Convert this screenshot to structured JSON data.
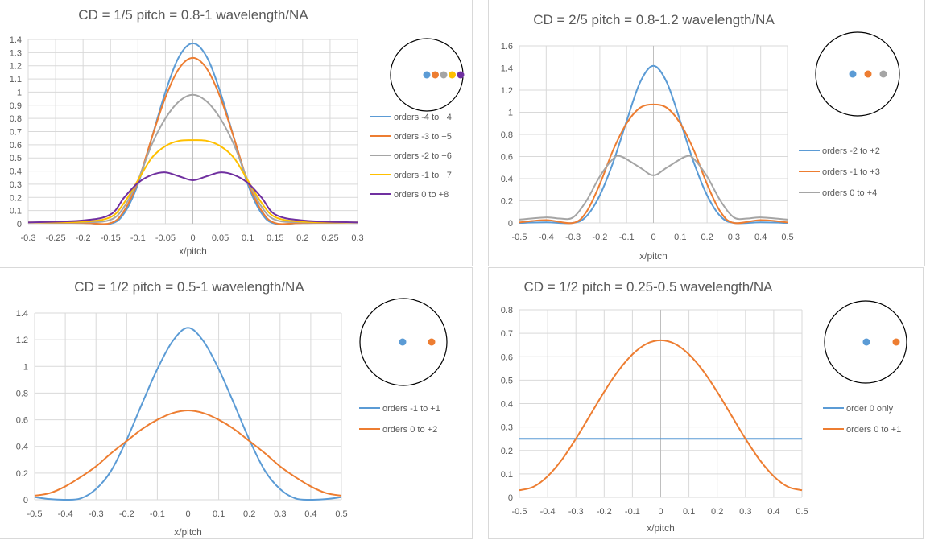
{
  "chart_data": [
    {
      "type": "line",
      "title": "CD = 1/5 pitch = 0.8-1 wavelength/NA",
      "xlabel": "x/pitch",
      "ylabel": "",
      "xlim": [
        -0.3,
        0.3
      ],
      "ylim": [
        0,
        1.4
      ],
      "xticks": [
        "-0.3",
        "-0.25",
        "-0.2",
        "-0.15",
        "-0.1",
        "-0.05",
        "0",
        "0.05",
        "0.1",
        "0.15",
        "0.2",
        "0.25",
        "0.3"
      ],
      "yticks": [
        "0",
        "0.1",
        "0.2",
        "0.3",
        "0.4",
        "0.5",
        "0.6",
        "0.7",
        "0.8",
        "0.9",
        "1",
        "1.1",
        "1.2",
        "1.3",
        "1.4"
      ],
      "grid": true,
      "legend_position": "right",
      "pupil_dots": [
        "#5b9bd5",
        "#ed7d31",
        "#a5a5a5",
        "#ffc000",
        "#7030a0"
      ],
      "series": [
        {
          "name": "orders -4 to +4",
          "color": "#5b9bd5",
          "x": [
            -0.3,
            -0.2,
            -0.15,
            -0.125,
            -0.1,
            -0.075,
            -0.05,
            -0.025,
            0,
            0.025,
            0.05,
            0.075,
            0.1,
            0.125,
            0.15,
            0.2,
            0.3
          ],
          "y": [
            0.01,
            0.005,
            0,
            0.08,
            0.3,
            0.65,
            1.0,
            1.27,
            1.37,
            1.27,
            1.0,
            0.65,
            0.3,
            0.08,
            0,
            0.005,
            0.01
          ]
        },
        {
          "name": "orders -3 to +5",
          "color": "#ed7d31",
          "x": [
            -0.3,
            -0.2,
            -0.15,
            -0.125,
            -0.1,
            -0.075,
            -0.05,
            -0.025,
            0,
            0.025,
            0.05,
            0.075,
            0.1,
            0.125,
            0.15,
            0.2,
            0.3
          ],
          "y": [
            0.01,
            0.005,
            0.005,
            0.1,
            0.32,
            0.65,
            0.96,
            1.18,
            1.26,
            1.18,
            0.96,
            0.65,
            0.32,
            0.1,
            0.005,
            0.005,
            0.01
          ]
        },
        {
          "name": "orders -2 to +6",
          "color": "#a5a5a5",
          "x": [
            -0.3,
            -0.2,
            -0.15,
            -0.125,
            -0.1,
            -0.075,
            -0.05,
            -0.025,
            0,
            0.025,
            0.05,
            0.075,
            0.1,
            0.125,
            0.15,
            0.2,
            0.3
          ],
          "y": [
            0.01,
            0.01,
            0.03,
            0.13,
            0.33,
            0.6,
            0.8,
            0.93,
            0.98,
            0.93,
            0.8,
            0.6,
            0.33,
            0.13,
            0.03,
            0.01,
            0.01
          ]
        },
        {
          "name": "orders -1 to +7",
          "color": "#ffc000",
          "x": [
            -0.3,
            -0.2,
            -0.15,
            -0.125,
            -0.1,
            -0.075,
            -0.05,
            -0.025,
            0,
            0.025,
            0.05,
            0.075,
            0.1,
            0.125,
            0.15,
            0.2,
            0.3
          ],
          "y": [
            0.01,
            0.015,
            0.05,
            0.16,
            0.33,
            0.5,
            0.59,
            0.63,
            0.635,
            0.63,
            0.59,
            0.5,
            0.33,
            0.16,
            0.05,
            0.015,
            0.01
          ]
        },
        {
          "name": "orders 0 to +8",
          "color": "#7030a0",
          "x": [
            -0.3,
            -0.2,
            -0.15,
            -0.125,
            -0.1,
            -0.075,
            -0.05,
            -0.025,
            0,
            0.025,
            0.05,
            0.075,
            0.1,
            0.125,
            0.15,
            0.2,
            0.3
          ],
          "y": [
            0.01,
            0.025,
            0.07,
            0.2,
            0.31,
            0.37,
            0.39,
            0.36,
            0.33,
            0.36,
            0.39,
            0.37,
            0.31,
            0.2,
            0.07,
            0.025,
            0.01
          ]
        }
      ]
    },
    {
      "type": "line",
      "title": "CD = 2/5 pitch = 0.8-1.2 wavelength/NA",
      "xlabel": "x/pitch",
      "ylabel": "",
      "xlim": [
        -0.5,
        0.5
      ],
      "ylim": [
        0,
        1.6
      ],
      "xticks": [
        "-0.5",
        "-0.4",
        "-0.3",
        "-0.2",
        "-0.1",
        "0",
        "0.1",
        "0.2",
        "0.3",
        "0.4",
        "0.5"
      ],
      "yticks": [
        "0",
        "0.2",
        "0.4",
        "0.6",
        "0.8",
        "1",
        "1.2",
        "1.4",
        "1.6"
      ],
      "grid": true,
      "legend_position": "right",
      "pupil_dots": [
        "#5b9bd5",
        "#ed7d31",
        "#a5a5a5"
      ],
      "series": [
        {
          "name": "orders -2 to +2",
          "color": "#5b9bd5",
          "x": [
            -0.5,
            -0.4,
            -0.3,
            -0.25,
            -0.2,
            -0.15,
            -0.1,
            -0.05,
            0,
            0.05,
            0.1,
            0.15,
            0.2,
            0.25,
            0.3,
            0.4,
            0.5
          ],
          "y": [
            0,
            0.005,
            0,
            0.06,
            0.25,
            0.55,
            0.92,
            1.27,
            1.42,
            1.27,
            0.92,
            0.55,
            0.25,
            0.06,
            0,
            0.005,
            0
          ]
        },
        {
          "name": "orders -1 to +3",
          "color": "#ed7d31",
          "x": [
            -0.5,
            -0.4,
            -0.3,
            -0.25,
            -0.2,
            -0.15,
            -0.1,
            -0.05,
            0,
            0.05,
            0.1,
            0.15,
            0.2,
            0.25,
            0.3,
            0.4,
            0.5
          ],
          "y": [
            0.005,
            0.025,
            0,
            0.1,
            0.35,
            0.66,
            0.9,
            1.04,
            1.07,
            1.04,
            0.9,
            0.66,
            0.35,
            0.1,
            0,
            0.025,
            0.005
          ]
        },
        {
          "name": "orders 0 to +4",
          "color": "#a5a5a5",
          "x": [
            -0.5,
            -0.4,
            -0.35,
            -0.3,
            -0.25,
            -0.2,
            -0.15,
            -0.12,
            -0.05,
            0,
            0.05,
            0.12,
            0.15,
            0.2,
            0.25,
            0.3,
            0.35,
            0.4,
            0.5
          ],
          "y": [
            0.03,
            0.05,
            0.04,
            0.05,
            0.2,
            0.42,
            0.58,
            0.6,
            0.5,
            0.43,
            0.5,
            0.6,
            0.58,
            0.42,
            0.2,
            0.05,
            0.04,
            0.05,
            0.03
          ]
        }
      ]
    },
    {
      "type": "line",
      "title": "CD = 1/2 pitch = 0.5-1 wavelength/NA",
      "xlabel": "x/pitch",
      "ylabel": "",
      "xlim": [
        -0.5,
        0.5
      ],
      "ylim": [
        0,
        1.4
      ],
      "xticks": [
        "-0.5",
        "-0.4",
        "-0.3",
        "-0.2",
        "-0.1",
        "0",
        "0.1",
        "0.2",
        "0.3",
        "0.4",
        "0.5"
      ],
      "yticks": [
        "0",
        "0.2",
        "0.4",
        "0.6",
        "0.8",
        "1",
        "1.2",
        "1.4"
      ],
      "grid": true,
      "legend_position": "right",
      "pupil_dots": [
        "#5b9bd5",
        "#ed7d31"
      ],
      "series": [
        {
          "name": "orders -1 to +1",
          "color": "#5b9bd5",
          "x": [
            -0.5,
            -0.45,
            -0.4,
            -0.35,
            -0.3,
            -0.25,
            -0.2,
            -0.15,
            -0.1,
            -0.05,
            0,
            0.05,
            0.1,
            0.15,
            0.2,
            0.25,
            0.3,
            0.35,
            0.4,
            0.45,
            0.5
          ],
          "y": [
            0.02,
            0.005,
            0,
            0.01,
            0.08,
            0.22,
            0.45,
            0.72,
            0.98,
            1.19,
            1.29,
            1.19,
            0.98,
            0.72,
            0.45,
            0.22,
            0.08,
            0.01,
            0,
            0.005,
            0.02
          ]
        },
        {
          "name": "orders 0 to +2",
          "color": "#ed7d31",
          "x": [
            -0.5,
            -0.45,
            -0.4,
            -0.35,
            -0.3,
            -0.25,
            -0.2,
            -0.15,
            -0.1,
            -0.05,
            0,
            0.05,
            0.1,
            0.15,
            0.2,
            0.25,
            0.3,
            0.35,
            0.4,
            0.45,
            0.5
          ],
          "y": [
            0.03,
            0.05,
            0.1,
            0.17,
            0.25,
            0.35,
            0.44,
            0.53,
            0.6,
            0.65,
            0.67,
            0.65,
            0.6,
            0.53,
            0.44,
            0.35,
            0.25,
            0.17,
            0.1,
            0.05,
            0.03
          ]
        }
      ]
    },
    {
      "type": "line",
      "title": "CD = 1/2 pitch = 0.25-0.5 wavelength/NA",
      "xlabel": "x/pitch",
      "ylabel": "",
      "xlim": [
        -0.5,
        0.5
      ],
      "ylim": [
        0,
        0.8
      ],
      "xticks": [
        "-0.5",
        "-0.4",
        "-0.3",
        "-0.2",
        "-0.1",
        "0",
        "0.1",
        "0.2",
        "0.3",
        "0.4",
        "0.5"
      ],
      "yticks": [
        "0",
        "0.1",
        "0.2",
        "0.3",
        "0.4",
        "0.5",
        "0.6",
        "0.7",
        "0.8"
      ],
      "grid": true,
      "legend_position": "right",
      "pupil_dots": [
        "#5b9bd5",
        "#ed7d31"
      ],
      "series": [
        {
          "name": "order 0 only",
          "color": "#5b9bd5",
          "x": [
            -0.5,
            0.5
          ],
          "y": [
            0.25,
            0.25
          ]
        },
        {
          "name": "orders 0 to +1",
          "color": "#ed7d31",
          "x": [
            -0.5,
            -0.45,
            -0.4,
            -0.35,
            -0.3,
            -0.25,
            -0.2,
            -0.15,
            -0.1,
            -0.05,
            0,
            0.05,
            0.1,
            0.15,
            0.2,
            0.25,
            0.3,
            0.35,
            0.4,
            0.45,
            0.5
          ],
          "y": [
            0.03,
            0.045,
            0.09,
            0.16,
            0.25,
            0.35,
            0.45,
            0.54,
            0.61,
            0.655,
            0.67,
            0.655,
            0.61,
            0.54,
            0.45,
            0.35,
            0.25,
            0.16,
            0.09,
            0.045,
            0.03
          ]
        }
      ]
    }
  ]
}
